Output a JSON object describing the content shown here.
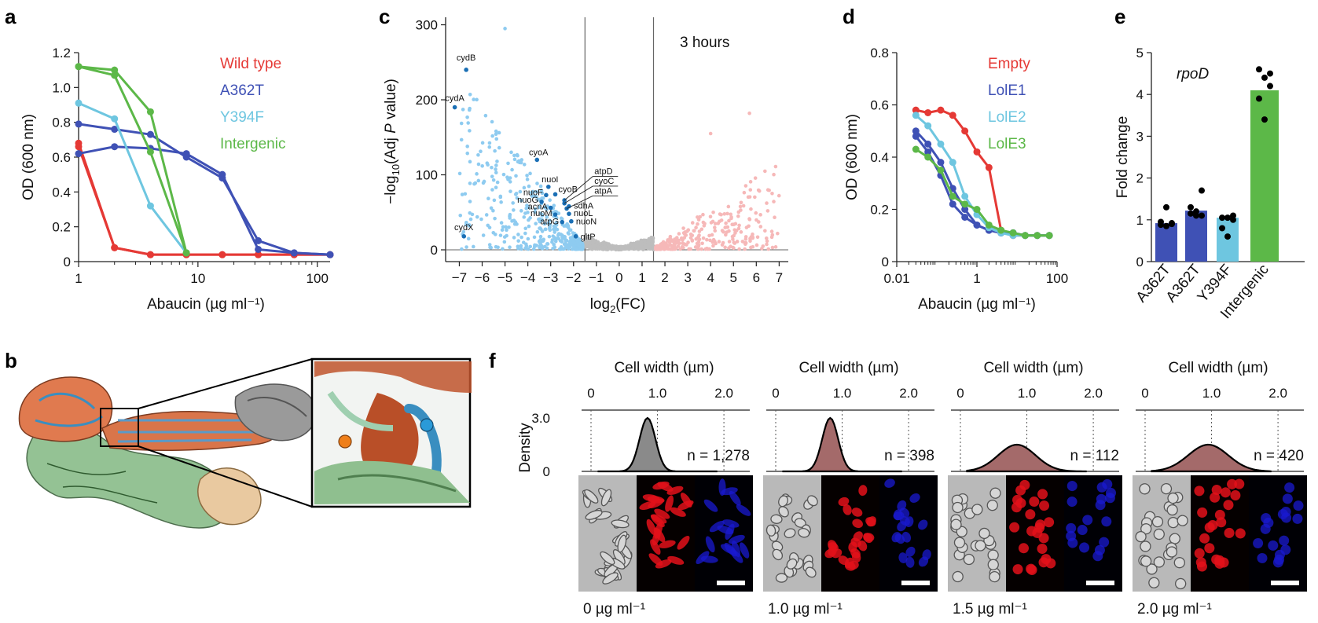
{
  "panel_labels": {
    "a": "a",
    "b": "b",
    "c": "c",
    "d": "d",
    "e": "e",
    "f": "f"
  },
  "colors": {
    "wild_type": "#e53935",
    "a362t": "#3f51b5",
    "y394f": "#6ec6e0",
    "intergenic": "#5cb848",
    "down": "#8ecbf0",
    "down_label": "#1a6fb5",
    "up": "#f6b8b8",
    "ns": "#bdbdbd",
    "empty": "#e53935",
    "lole1": "#3f51b5",
    "lole2": "#6ec6e0",
    "lole3": "#5cb848",
    "density_0": "#8a8a8a",
    "density_1": "#a46a6a"
  },
  "chart_data": [
    {
      "panel": "a",
      "type": "line",
      "xscale": "log",
      "xlabel": "Abaucin (µg ml⁻¹)",
      "ylabel": "OD (600 nm)",
      "xlim": [
        1,
        128
      ],
      "ylim": [
        0,
        1.2
      ],
      "xticks": [
        "1",
        "10",
        "100"
      ],
      "yticks": [
        "0",
        "0.2",
        "0.4",
        "0.6",
        "0.8",
        "1.0",
        "1.2"
      ],
      "legend_position": "top-right",
      "series": [
        {
          "name": "Wild type",
          "color_key": "wild_type",
          "reps": [
            {
              "x": [
                1,
                2,
                4,
                8,
                16,
                32,
                64,
                128
              ],
              "y": [
                0.68,
                0.08,
                0.04,
                0.04,
                0.04,
                0.04,
                0.04,
                0.04
              ]
            },
            {
              "x": [
                1,
                2,
                4,
                8,
                16,
                32,
                64,
                128
              ],
              "y": [
                0.66,
                0.08,
                0.04,
                0.04,
                0.04,
                0.04,
                0.04,
                0.04
              ]
            }
          ]
        },
        {
          "name": "A362T",
          "color_key": "a362t",
          "reps": [
            {
              "x": [
                1,
                2,
                4,
                8,
                16,
                32,
                64,
                128
              ],
              "y": [
                0.79,
                0.76,
                0.73,
                0.6,
                0.48,
                0.12,
                0.05,
                0.04
              ]
            },
            {
              "x": [
                1,
                2,
                4,
                8,
                16,
                32,
                64,
                128
              ],
              "y": [
                0.62,
                0.66,
                0.65,
                0.62,
                0.5,
                0.07,
                0.05,
                0.04
              ]
            }
          ]
        },
        {
          "name": "Y394F",
          "color_key": "y394f",
          "reps": [
            {
              "x": [
                1,
                2,
                4,
                8
              ],
              "y": [
                0.91,
                0.82,
                0.32,
                0.05
              ]
            }
          ]
        },
        {
          "name": "Intergenic",
          "color_key": "intergenic",
          "reps": [
            {
              "x": [
                1,
                2,
                4,
                8
              ],
              "y": [
                1.12,
                1.1,
                0.86,
                0.05
              ]
            },
            {
              "x": [
                1,
                2,
                4,
                8
              ],
              "y": [
                1.12,
                1.07,
                0.63,
                0.05
              ]
            }
          ]
        }
      ]
    },
    {
      "panel": "c",
      "type": "scatter",
      "annotation": "3 hours",
      "xlabel": "log2(FC)",
      "ylabel": "−log10(Adj P value)",
      "xlim": [
        -7.6,
        7.4
      ],
      "ylim": [
        0,
        310
      ],
      "xticks": [
        "−7",
        "−6",
        "−5",
        "−4",
        "−3",
        "−2",
        "−1",
        "0",
        "1",
        "2",
        "3",
        "4",
        "5",
        "6",
        "7"
      ],
      "yticks": [
        "0",
        "100",
        "200",
        "300"
      ],
      "thresholds_x": [
        -1.5,
        1.5
      ],
      "labeled_points": [
        {
          "gene": "cydB",
          "x": -6.7,
          "y": 240
        },
        {
          "gene": "cydA",
          "x": -7.2,
          "y": 190
        },
        {
          "gene": "cydX",
          "x": -6.8,
          "y": 18
        },
        {
          "gene": "cyoA",
          "x": -3.6,
          "y": 120
        },
        {
          "gene": "nuoI",
          "x": -3.1,
          "y": 84
        },
        {
          "gene": "nuoF",
          "x": -3.2,
          "y": 73
        },
        {
          "gene": "cyoB",
          "x": -2.8,
          "y": 74
        },
        {
          "gene": "nuoG",
          "x": -3.4,
          "y": 64
        },
        {
          "gene": "acnA",
          "x": -3.0,
          "y": 56
        },
        {
          "gene": "nuoM",
          "x": -2.8,
          "y": 47
        },
        {
          "gene": "atpG",
          "x": -2.5,
          "y": 37
        },
        {
          "gene": "sdhA",
          "x": -2.2,
          "y": 58
        },
        {
          "gene": "nuoL",
          "x": -2.2,
          "y": 48
        },
        {
          "gene": "nuoN",
          "x": -2.1,
          "y": 38
        },
        {
          "gene": "gltP",
          "x": -1.9,
          "y": 18
        },
        {
          "gene": "atpD",
          "x": -2.4,
          "y": 66
        },
        {
          "gene": "cyoC",
          "x": -2.4,
          "y": 62
        },
        {
          "gene": "atpA",
          "x": -2.3,
          "y": 55
        }
      ]
    },
    {
      "panel": "d",
      "type": "line",
      "xscale": "log",
      "xlabel": "Abaucin (µg ml⁻¹)",
      "ylabel": "OD (600 nm)",
      "xlim": [
        0.01,
        100
      ],
      "ylim": [
        0,
        0.8
      ],
      "xticks": [
        "0.01",
        "1",
        "100"
      ],
      "yticks": [
        "0",
        "0.2",
        "0.4",
        "0.6",
        "0.8"
      ],
      "legend_position": "top-right",
      "series": [
        {
          "name": "Empty",
          "color_key": "empty",
          "reps": [
            {
              "x": [
                0.03,
                0.06,
                0.125,
                0.25,
                0.5,
                1,
                2,
                4,
                8,
                16,
                32,
                64
              ],
              "y": [
                0.58,
                0.57,
                0.58,
                0.56,
                0.5,
                0.42,
                0.36,
                0.12,
                0.1,
                0.1,
                0.1,
                0.1
              ]
            }
          ]
        },
        {
          "name": "LolE1",
          "color_key": "lole1",
          "reps": [
            {
              "x": [
                0.03,
                0.06,
                0.125,
                0.25,
                0.5,
                1,
                2,
                4,
                8,
                16,
                32,
                64
              ],
              "y": [
                0.5,
                0.45,
                0.38,
                0.28,
                0.2,
                0.14,
                0.12,
                0.11,
                0.11,
                0.1,
                0.1,
                0.1
              ]
            },
            {
              "x": [
                0.03,
                0.06,
                0.125,
                0.25,
                0.5,
                1,
                2,
                4,
                8,
                16,
                32,
                64
              ],
              "y": [
                0.48,
                0.42,
                0.33,
                0.22,
                0.17,
                0.14,
                0.12,
                0.11,
                0.11,
                0.1,
                0.1,
                0.1
              ]
            }
          ]
        },
        {
          "name": "LolE2",
          "color_key": "lole2",
          "reps": [
            {
              "x": [
                0.03,
                0.06,
                0.125,
                0.25,
                0.5,
                1,
                2,
                4,
                8,
                16,
                32,
                64
              ],
              "y": [
                0.56,
                0.52,
                0.45,
                0.38,
                0.25,
                0.18,
                0.13,
                0.11,
                0.1,
                0.1,
                0.1,
                0.1
              ]
            }
          ]
        },
        {
          "name": "LolE3",
          "color_key": "lole3",
          "reps": [
            {
              "x": [
                0.03,
                0.06,
                0.125,
                0.25,
                0.5,
                1,
                2,
                4,
                8,
                16,
                32,
                64
              ],
              "y": [
                0.43,
                0.4,
                0.35,
                0.25,
                0.22,
                0.2,
                0.14,
                0.12,
                0.11,
                0.1,
                0.1,
                0.1
              ]
            }
          ]
        }
      ]
    },
    {
      "panel": "e",
      "type": "bar",
      "annotation": "rpoD",
      "ylabel": "Fold change",
      "ylim": [
        0,
        5
      ],
      "yticks": [
        "0",
        "1",
        "2",
        "3",
        "4",
        "5"
      ],
      "categories": [
        "A362T",
        "A362T",
        "Y394F",
        "Intergenic"
      ],
      "values": [
        0.92,
        1.22,
        1.05,
        4.1
      ],
      "color_keys": [
        "a362t",
        "a362t",
        "y394f",
        "intergenic"
      ],
      "points": [
        [
          0.95,
          0.85,
          0.9,
          0.88,
          1.3,
          0.92
        ],
        [
          1.15,
          1.1,
          1.7,
          1.3,
          1.2,
          1.1
        ],
        [
          1.05,
          0.6,
          1.1,
          0.8,
          1.05,
          1.0
        ],
        [
          4.6,
          4.4,
          4.2,
          3.9,
          3.4,
          4.5
        ]
      ]
    }
  ],
  "panel_f": {
    "xlabel": "Cell width (µm)",
    "xticks": [
      "0",
      "1.0",
      "2.0"
    ],
    "ylabel": "Density",
    "yticks": [
      "3.0",
      "0"
    ],
    "groups": [
      {
        "n_label": "n = 1,278",
        "dose": "0 µg ml⁻¹",
        "peak_x": 0.85,
        "peak_y": 3.0,
        "spread": 0.12,
        "color_key": "density_0"
      },
      {
        "n_label": "n = 398",
        "dose": "1.0 µg ml⁻¹",
        "peak_x": 0.82,
        "peak_y": 3.0,
        "spread": 0.12,
        "color_key": "density_1"
      },
      {
        "n_label": "n = 112",
        "dose": "1.5 µg ml⁻¹",
        "peak_x": 0.85,
        "peak_y": 1.5,
        "spread": 0.28,
        "color_key": "density_1"
      },
      {
        "n_label": "n = 420",
        "dose": "2.0 µg ml⁻¹",
        "peak_x": 0.95,
        "peak_y": 1.5,
        "spread": 0.3,
        "color_key": "density_1"
      }
    ]
  }
}
